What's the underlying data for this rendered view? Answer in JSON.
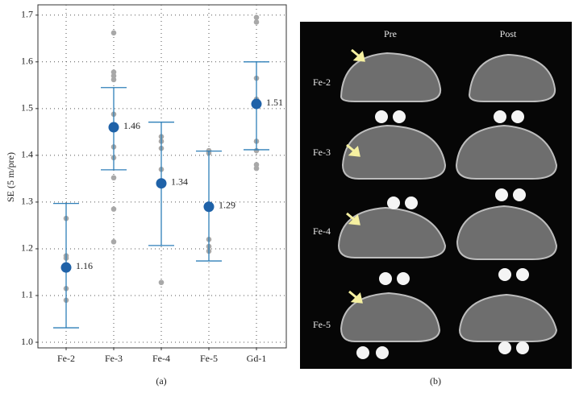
{
  "chart_data": {
    "type": "dot-errorbar",
    "y_label": "SE (5 m/pre)",
    "categories": [
      "Fe-2",
      "Fe-3",
      "Fe-4",
      "Fe-5",
      "Gd-1"
    ],
    "means": [
      1.16,
      1.46,
      1.34,
      1.29,
      1.51
    ],
    "lower": [
      1.031,
      1.369,
      1.207,
      1.174,
      1.412
    ],
    "upper": [
      1.297,
      1.545,
      1.471,
      1.409,
      1.6
    ],
    "points": [
      [
        1.265,
        1.185,
        1.18,
        1.115,
        1.09
      ],
      [
        1.662,
        1.578,
        1.57,
        1.562,
        1.488,
        1.418,
        1.395,
        1.352,
        1.285,
        1.215
      ],
      [
        1.44,
        1.43,
        1.415,
        1.37,
        1.128
      ],
      [
        1.41,
        1.405,
        1.22,
        1.205,
        1.195
      ],
      [
        1.695,
        1.685,
        1.565,
        1.52,
        1.43,
        1.41,
        1.38,
        1.372
      ]
    ],
    "mean_color": "#1f62a8",
    "bar_color": "#2e7fb8",
    "point_color": "#a8a8a8",
    "ylim": [
      0.988,
      1.722
    ],
    "yticks": [
      {
        "value": 1.0,
        "label": "1.0"
      },
      1.1,
      1.2,
      1.3,
      1.4,
      1.5,
      1.6,
      1.7
    ],
    "grid": true
  },
  "captions": [
    "(a)",
    "(b)"
  ],
  "image_panel": {
    "columns": [
      "Pre",
      "Post"
    ],
    "rows": [
      "Fe-2",
      "Fe-3",
      "Fe-4",
      "Fe-5"
    ]
  }
}
